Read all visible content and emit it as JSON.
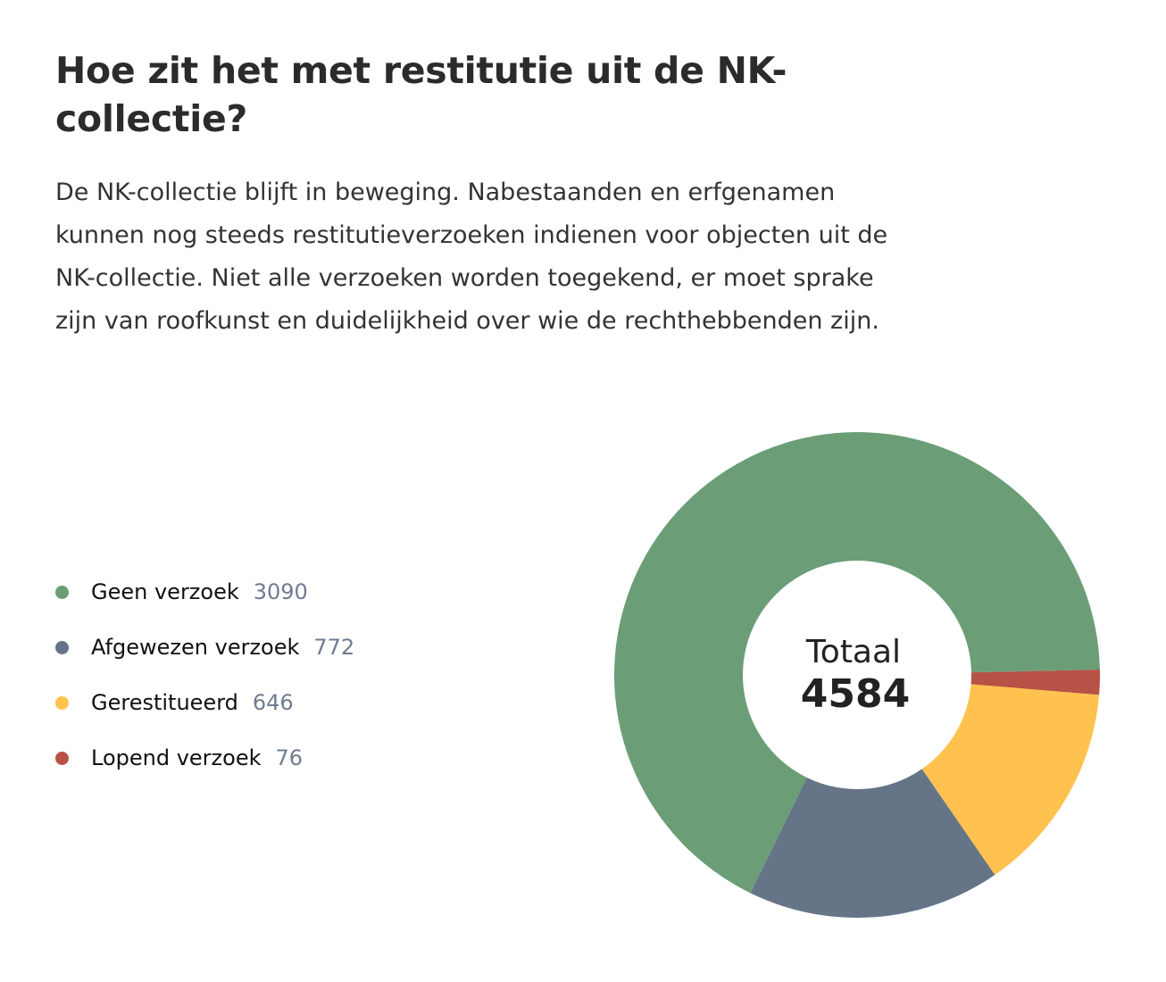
{
  "title": "Hoe zit het met restitutie uit de NK-collectie?",
  "intro": "De NK-collectie blijft in beweging. Nabestaanden en erfgenamen kunnen nog steeds restitutieverzoeken indienen voor objecten uit de NK-collectie. Niet alle verzoeken worden toegekend, er moet sprake zijn van roofkunst en duidelijkheid over wie de rechthebbenden zijn.",
  "chart_data": {
    "type": "pie",
    "donut": true,
    "center_label": "Totaal",
    "total": "4584",
    "legend_position": "left",
    "slices": [
      {
        "label": "Geen verzoek",
        "value": 3090,
        "color": "#6b9e76"
      },
      {
        "label": "Afgewezen verzoek",
        "value": 772,
        "color": "#667488"
      },
      {
        "label": "Gerestitueerd",
        "value": 646,
        "color": "#ffc24e"
      },
      {
        "label": "Lopend verzoek",
        "value": 76,
        "color": "#b85246"
      }
    ]
  }
}
